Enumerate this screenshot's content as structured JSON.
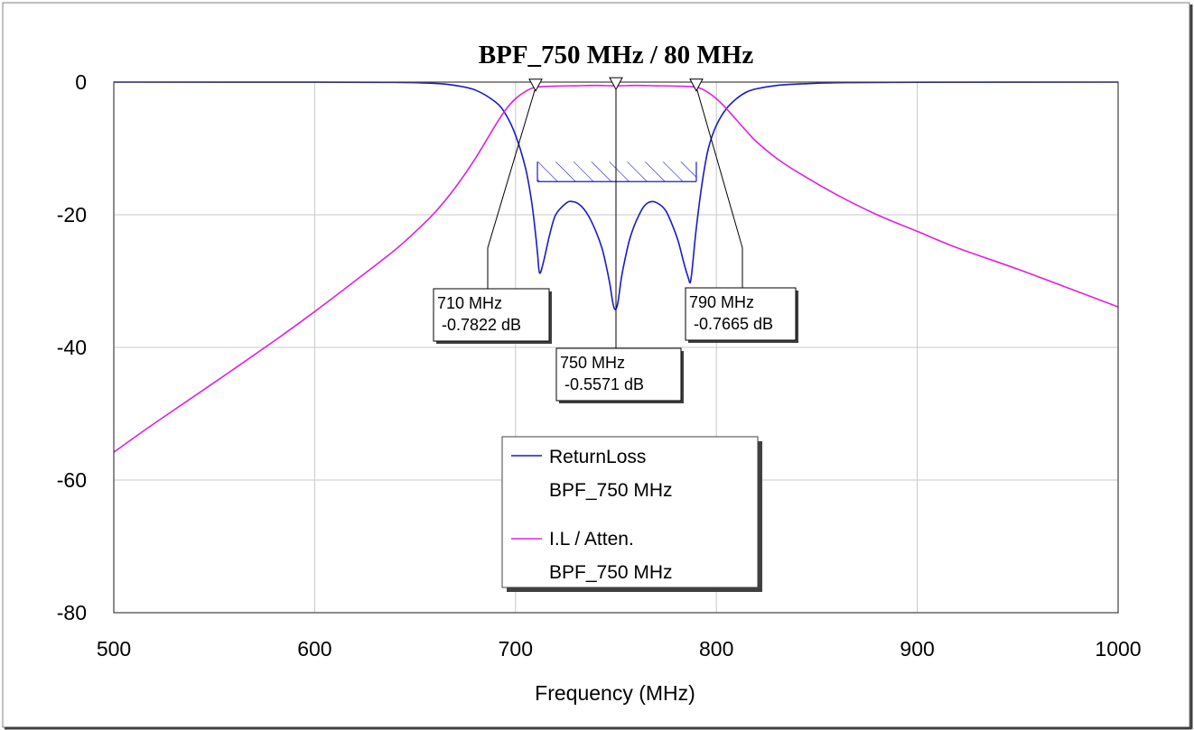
{
  "chart_data": {
    "type": "line",
    "title": "BPF_750 MHz / 80 MHz",
    "xlabel": "Frequency (MHz)",
    "ylabel": "",
    "xlim": [
      500,
      1000
    ],
    "ylim": [
      -80,
      0
    ],
    "x_ticks": [
      500,
      600,
      700,
      800,
      900,
      1000
    ],
    "y_ticks": [
      0,
      -20,
      -40,
      -60,
      -80
    ],
    "grid": true,
    "legend_position": "bottom-center",
    "series": [
      {
        "name": "ReturnLoss\nBPF_750 MHz",
        "legend_line1": "ReturnLoss",
        "legend_line2": "BPF_750 MHz",
        "color": "#1a1acc",
        "x": [
          500,
          600,
          640,
          660,
          670,
          680,
          690,
          695,
          700,
          705,
          708,
          710,
          711,
          712,
          714,
          717,
          720,
          725,
          728,
          732,
          736,
          740,
          743,
          745,
          747,
          748,
          749,
          750,
          751,
          752,
          753,
          755,
          757,
          760,
          764,
          768,
          772,
          775,
          778,
          781,
          784,
          786,
          787,
          788,
          790,
          793,
          796,
          800,
          805,
          810,
          815,
          820,
          830,
          840,
          860,
          900,
          1000
        ],
        "y": [
          0,
          -0.01,
          -0.05,
          -0.2,
          -0.5,
          -1.2,
          -3,
          -4.8,
          -8,
          -13,
          -18,
          -23,
          -26,
          -28.8,
          -27,
          -23,
          -20,
          -18.3,
          -18,
          -18.5,
          -20,
          -22.5,
          -25,
          -27.5,
          -30.5,
          -32.5,
          -34,
          -34.2,
          -33.2,
          -31,
          -29,
          -26,
          -23.5,
          -21,
          -18.7,
          -18,
          -18.5,
          -19.5,
          -21.5,
          -24,
          -27.5,
          -29.5,
          -30.2,
          -28,
          -22,
          -15,
          -10,
          -6.5,
          -4,
          -2.5,
          -1.5,
          -1,
          -0.5,
          -0.3,
          -0.1,
          -0.02,
          0
        ]
      },
      {
        "name": "I.L / Atten.\nBPF_750 MHz",
        "legend_line1": "I.L / Atten.",
        "legend_line2": "BPF_750 MHz",
        "color": "#e020e0",
        "x": [
          500,
          520,
          550,
          580,
          600,
          620,
          640,
          650,
          660,
          670,
          680,
          690,
          695,
          700,
          705,
          710,
          720,
          730,
          740,
          750,
          760,
          770,
          780,
          790,
          795,
          800,
          805,
          810,
          815,
          820,
          830,
          840,
          860,
          880,
          900,
          920,
          950,
          980,
          1000
        ],
        "y": [
          -55.8,
          -51.5,
          -45.3,
          -39,
          -34.6,
          -30,
          -25.3,
          -22.6,
          -19.6,
          -15.9,
          -11.5,
          -6.5,
          -4.2,
          -2.5,
          -1.4,
          -0.78,
          -0.6,
          -0.55,
          -0.5,
          -0.557,
          -0.5,
          -0.55,
          -0.6,
          -0.77,
          -1.4,
          -2.5,
          -4,
          -5.7,
          -7.4,
          -9,
          -11.5,
          -13.5,
          -17,
          -20,
          -22.5,
          -25,
          -28.2,
          -31.6,
          -33.9
        ]
      }
    ],
    "mask": {
      "x": [
        710,
        790
      ],
      "y": -15
    },
    "markers": [
      {
        "x": 710,
        "y": -0.7822,
        "line1": "710 MHz",
        "line2": " -0.7822 dB"
      },
      {
        "x": 750,
        "y": -0.5571,
        "line1": "750 MHz",
        "line2": " -0.5571 dB"
      },
      {
        "x": 790,
        "y": -0.7665,
        "line1": "790 MHz",
        "line2": " -0.7665 dB"
      }
    ],
    "plot_border_color": "#404040",
    "grid_color": "#c8c8c8",
    "mask_color": "#1a1acc"
  }
}
